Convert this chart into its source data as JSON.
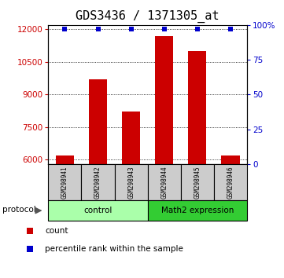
{
  "title": "GDS3436 / 1371305_at",
  "samples": [
    "GSM298941",
    "GSM298942",
    "GSM298943",
    "GSM298944",
    "GSM298945",
    "GSM298946"
  ],
  "counts": [
    6200,
    9700,
    8200,
    11700,
    11000,
    6200
  ],
  "percentile_ranks": [
    97,
    97,
    97,
    97,
    97,
    97
  ],
  "ylim_left": [
    5800,
    12200
  ],
  "ylim_right": [
    0,
    100
  ],
  "yticks_left": [
    6000,
    7500,
    9000,
    10500,
    12000
  ],
  "yticks_right": [
    0,
    25,
    50,
    75,
    100
  ],
  "ytick_labels_right": [
    "0",
    "25",
    "50",
    "75",
    "100%"
  ],
  "bar_color": "#cc0000",
  "dot_color": "#0000cc",
  "title_fontsize": 11,
  "groups": [
    {
      "label": "control",
      "start": 0,
      "end": 3,
      "color": "#aaffaa"
    },
    {
      "label": "Math2 expression",
      "start": 3,
      "end": 6,
      "color": "#33cc33"
    }
  ],
  "protocol_label": "protocol",
  "legend_items": [
    {
      "color": "#cc0000",
      "label": "count"
    },
    {
      "color": "#0000cc",
      "label": "percentile rank within the sample"
    }
  ],
  "bar_width": 0.55,
  "sample_box_color": "#cccccc"
}
